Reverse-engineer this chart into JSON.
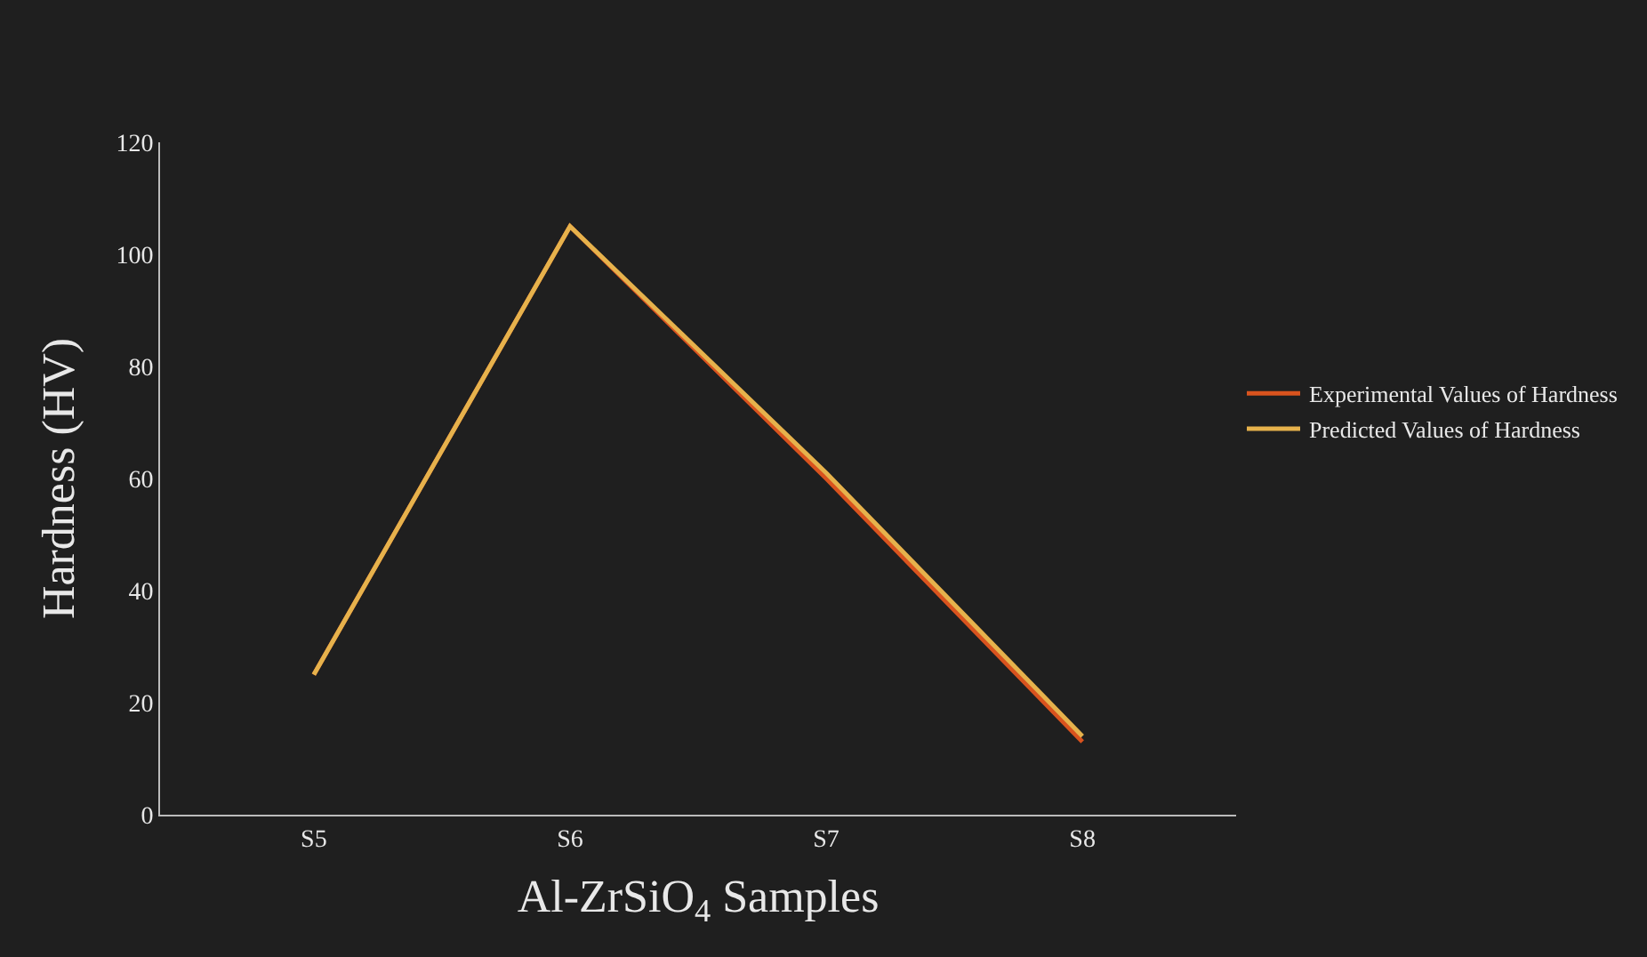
{
  "chart_data": {
    "type": "line",
    "xlabel": "Al-ZrSiO$_{4}$ Samples",
    "ylabel": "Hardness (HV)",
    "categories": [
      "S5",
      "S6",
      "S7",
      "S8"
    ],
    "series": [
      {
        "name": "Experimental Values of Hardness",
        "color": "#d9531e",
        "values": [
          25,
          105,
          60,
          13
        ]
      },
      {
        "name": "Predicted Values of Hardness",
        "color": "#e6b24c",
        "values": [
          25,
          105,
          61,
          14
        ]
      }
    ],
    "ylim": [
      0,
      120
    ],
    "yticks": [
      0,
      20,
      40,
      60,
      80,
      100,
      120
    ],
    "grid": false,
    "legend": "right",
    "marker": "none",
    "line_style": "solid"
  }
}
